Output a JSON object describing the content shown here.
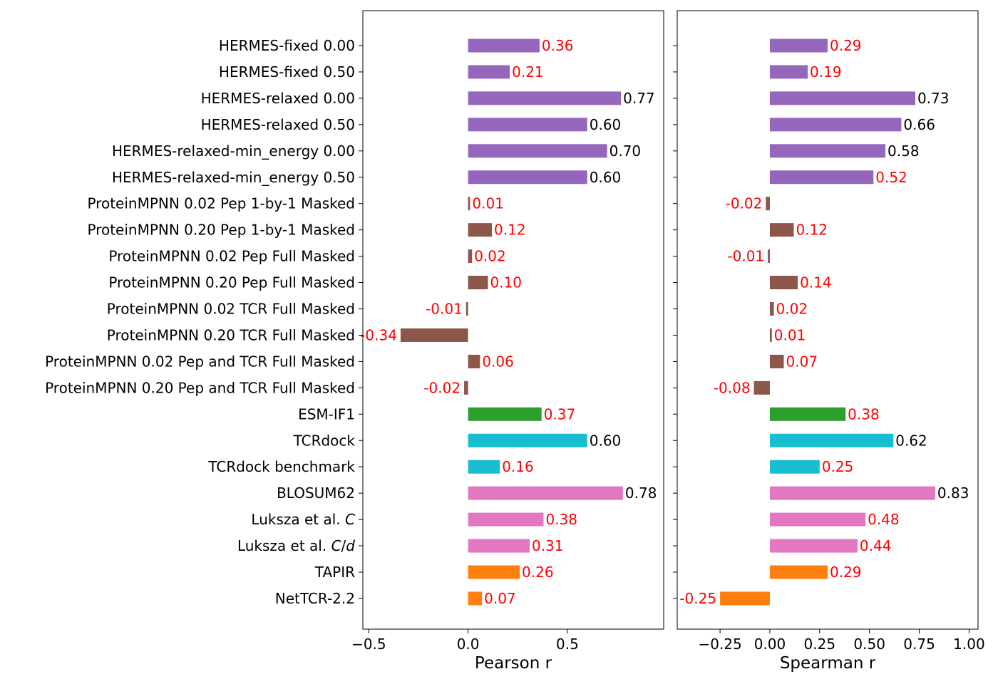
{
  "colors": {
    "HERMES": "#9467bd",
    "ProteinMPNN": "#8c564b",
    "ESM-IF1": "#2ca02c",
    "TCRdock": "#17becf",
    "Substitution": "#e377c2",
    "Other": "#ff7f0e",
    "label_significant": "#000000",
    "label_not_significant": "#ff0000"
  },
  "chart_data": {
    "type": "bar",
    "orientation": "horizontal",
    "categories": [
      {
        "parts": [
          {
            "t": "HERMES-fixed 0.00"
          }
        ]
      },
      {
        "parts": [
          {
            "t": "HERMES-fixed 0.50"
          }
        ]
      },
      {
        "parts": [
          {
            "t": "HERMES-relaxed 0.00"
          }
        ]
      },
      {
        "parts": [
          {
            "t": "HERMES-relaxed 0.50"
          }
        ]
      },
      {
        "parts": [
          {
            "t": "HERMES-relaxed-min_energy 0.00"
          }
        ]
      },
      {
        "parts": [
          {
            "t": "HERMES-relaxed-min_energy 0.50"
          }
        ]
      },
      {
        "parts": [
          {
            "t": "ProteinMPNN 0.02 Pep 1-by-1 Masked"
          }
        ]
      },
      {
        "parts": [
          {
            "t": "ProteinMPNN 0.20 Pep 1-by-1 Masked"
          }
        ]
      },
      {
        "parts": [
          {
            "t": "ProteinMPNN 0.02 Pep Full Masked"
          }
        ]
      },
      {
        "parts": [
          {
            "t": "ProteinMPNN 0.20 Pep Full Masked"
          }
        ]
      },
      {
        "parts": [
          {
            "t": "ProteinMPNN 0.02 TCR Full Masked"
          }
        ]
      },
      {
        "parts": [
          {
            "t": "ProteinMPNN 0.20 TCR Full Masked"
          }
        ]
      },
      {
        "parts": [
          {
            "t": "ProteinMPNN 0.02 Pep and TCR Full Masked"
          }
        ]
      },
      {
        "parts": [
          {
            "t": "ProteinMPNN 0.20 Pep and TCR Full Masked"
          }
        ]
      },
      {
        "parts": [
          {
            "t": "ESM-IF1"
          }
        ]
      },
      {
        "parts": [
          {
            "t": "TCRdock"
          }
        ]
      },
      {
        "parts": [
          {
            "t": "TCRdock benchmark"
          }
        ]
      },
      {
        "parts": [
          {
            "t": "BLOSUM62"
          }
        ]
      },
      {
        "parts": [
          {
            "t": "Luksza et al. "
          },
          {
            "t": "C",
            "italic": true
          }
        ]
      },
      {
        "parts": [
          {
            "t": "Luksza et al. "
          },
          {
            "t": "C",
            "italic": true
          },
          {
            "t": "/"
          },
          {
            "t": "d",
            "italic": true
          }
        ]
      },
      {
        "parts": [
          {
            "t": "TAPIR"
          }
        ]
      },
      {
        "parts": [
          {
            "t": "NetTCR-2.2"
          }
        ]
      }
    ],
    "category_groups": [
      "HERMES",
      "HERMES",
      "HERMES",
      "HERMES",
      "HERMES",
      "HERMES",
      "ProteinMPNN",
      "ProteinMPNN",
      "ProteinMPNN",
      "ProteinMPNN",
      "ProteinMPNN",
      "ProteinMPNN",
      "ProteinMPNN",
      "ProteinMPNN",
      "ESM-IF1",
      "TCRdock",
      "TCRdock",
      "Substitution",
      "Substitution",
      "Substitution",
      "Other",
      "Other"
    ],
    "panels": [
      {
        "xlabel": "Pearson r",
        "xlim": [
          -0.53,
          0.985
        ],
        "xticks": [
          -0.5,
          0.0,
          0.5
        ],
        "xtick_labels": [
          "−0.5",
          "0.0",
          "0.5"
        ],
        "values": [
          0.36,
          0.21,
          0.77,
          0.6,
          0.7,
          0.6,
          0.01,
          0.12,
          0.02,
          0.1,
          -0.01,
          -0.34,
          0.06,
          -0.02,
          0.37,
          0.6,
          0.16,
          0.78,
          0.38,
          0.31,
          0.26,
          0.07
        ],
        "value_labels": [
          "0.36",
          "0.21",
          "0.77",
          "0.60",
          "0.70",
          "0.60",
          "0.01",
          "0.12",
          "0.02",
          "0.10",
          "-0.01",
          "-0.34",
          "0.06",
          "-0.02",
          "0.37",
          "0.60",
          "0.16",
          "0.78",
          "0.38",
          "0.31",
          "0.26",
          "0.07"
        ],
        "significant": [
          false,
          false,
          true,
          true,
          true,
          true,
          false,
          false,
          false,
          false,
          false,
          false,
          false,
          false,
          false,
          true,
          false,
          true,
          false,
          false,
          false,
          false
        ]
      },
      {
        "xlabel": "Spearman r",
        "xlim": [
          -0.465,
          1.045
        ],
        "xticks": [
          -0.25,
          0.0,
          0.25,
          0.5,
          0.75,
          1.0
        ],
        "xtick_labels": [
          "−0.25",
          "0.00",
          "0.25",
          "0.50",
          "0.75",
          "1.00"
        ],
        "values": [
          0.29,
          0.19,
          0.73,
          0.66,
          0.58,
          0.52,
          -0.02,
          0.12,
          -0.01,
          0.14,
          0.02,
          0.01,
          0.07,
          -0.08,
          0.38,
          0.62,
          0.25,
          0.83,
          0.48,
          0.44,
          0.29,
          -0.25
        ],
        "value_labels": [
          "0.29",
          "0.19",
          "0.73",
          "0.66",
          "0.58",
          "0.52",
          "-0.02",
          "0.12",
          "-0.01",
          "0.14",
          "0.02",
          "0.01",
          "0.07",
          "-0.08",
          "0.38",
          "0.62",
          "0.25",
          "0.83",
          "0.48",
          "0.44",
          "0.29",
          "-0.25"
        ],
        "significant": [
          false,
          false,
          true,
          true,
          true,
          false,
          false,
          false,
          false,
          false,
          false,
          false,
          false,
          false,
          false,
          true,
          false,
          true,
          false,
          false,
          false,
          false
        ]
      }
    ]
  }
}
